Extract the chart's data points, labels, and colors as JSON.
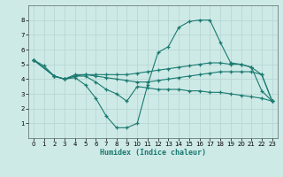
{
  "title": "",
  "xlabel": "Humidex (Indice chaleur)",
  "ylabel": "",
  "bg_color": "#ceeae7",
  "line_color": "#1a7a70",
  "grid_color": "#b8d8d5",
  "xlim": [
    -0.5,
    23.5
  ],
  "ylim": [
    0,
    9
  ],
  "xticks": [
    0,
    1,
    2,
    3,
    4,
    5,
    6,
    7,
    8,
    9,
    10,
    11,
    12,
    13,
    14,
    15,
    16,
    17,
    18,
    19,
    20,
    21,
    22,
    23
  ],
  "yticks": [
    1,
    2,
    3,
    4,
    5,
    6,
    7,
    8
  ],
  "lines": [
    {
      "x": [
        0,
        1,
        2,
        3,
        4,
        5,
        6,
        7,
        8,
        9,
        10,
        11,
        12,
        13,
        14,
        15,
        16,
        17,
        18,
        19,
        20,
        21,
        22,
        23
      ],
      "y": [
        5.3,
        4.9,
        4.2,
        4.0,
        4.3,
        4.3,
        4.3,
        4.3,
        4.3,
        4.3,
        4.4,
        4.5,
        4.6,
        4.7,
        4.8,
        4.9,
        5.0,
        5.1,
        5.1,
        5.0,
        5.0,
        4.8,
        4.3,
        2.5
      ]
    },
    {
      "x": [
        0,
        2,
        3,
        4,
        5,
        6,
        7,
        8,
        9,
        10,
        11,
        12,
        13,
        14,
        15,
        16,
        17,
        18,
        19,
        20,
        21,
        22,
        23
      ],
      "y": [
        5.3,
        4.2,
        4.0,
        4.1,
        3.6,
        2.7,
        1.5,
        0.7,
        0.7,
        1.0,
        3.6,
        5.8,
        6.2,
        7.5,
        7.9,
        8.0,
        8.0,
        6.5,
        5.1,
        5.0,
        4.8,
        3.2,
        2.5
      ]
    },
    {
      "x": [
        0,
        2,
        3,
        4,
        5,
        6,
        7,
        8,
        9,
        10,
        11,
        12,
        13,
        14,
        15,
        16,
        17,
        18,
        19,
        20,
        21,
        22,
        23
      ],
      "y": [
        5.3,
        4.2,
        4.0,
        4.2,
        4.2,
        3.8,
        3.3,
        3.0,
        2.5,
        3.5,
        3.4,
        3.3,
        3.3,
        3.3,
        3.2,
        3.2,
        3.1,
        3.1,
        3.0,
        2.9,
        2.8,
        2.7,
        2.5
      ]
    },
    {
      "x": [
        0,
        2,
        3,
        4,
        5,
        6,
        7,
        8,
        9,
        10,
        11,
        12,
        13,
        14,
        15,
        16,
        17,
        18,
        19,
        20,
        21,
        22,
        23
      ],
      "y": [
        5.3,
        4.2,
        4.0,
        4.2,
        4.3,
        4.2,
        4.1,
        4.0,
        3.9,
        3.8,
        3.8,
        3.9,
        4.0,
        4.1,
        4.2,
        4.3,
        4.4,
        4.5,
        4.5,
        4.5,
        4.5,
        4.3,
        2.5
      ]
    }
  ]
}
